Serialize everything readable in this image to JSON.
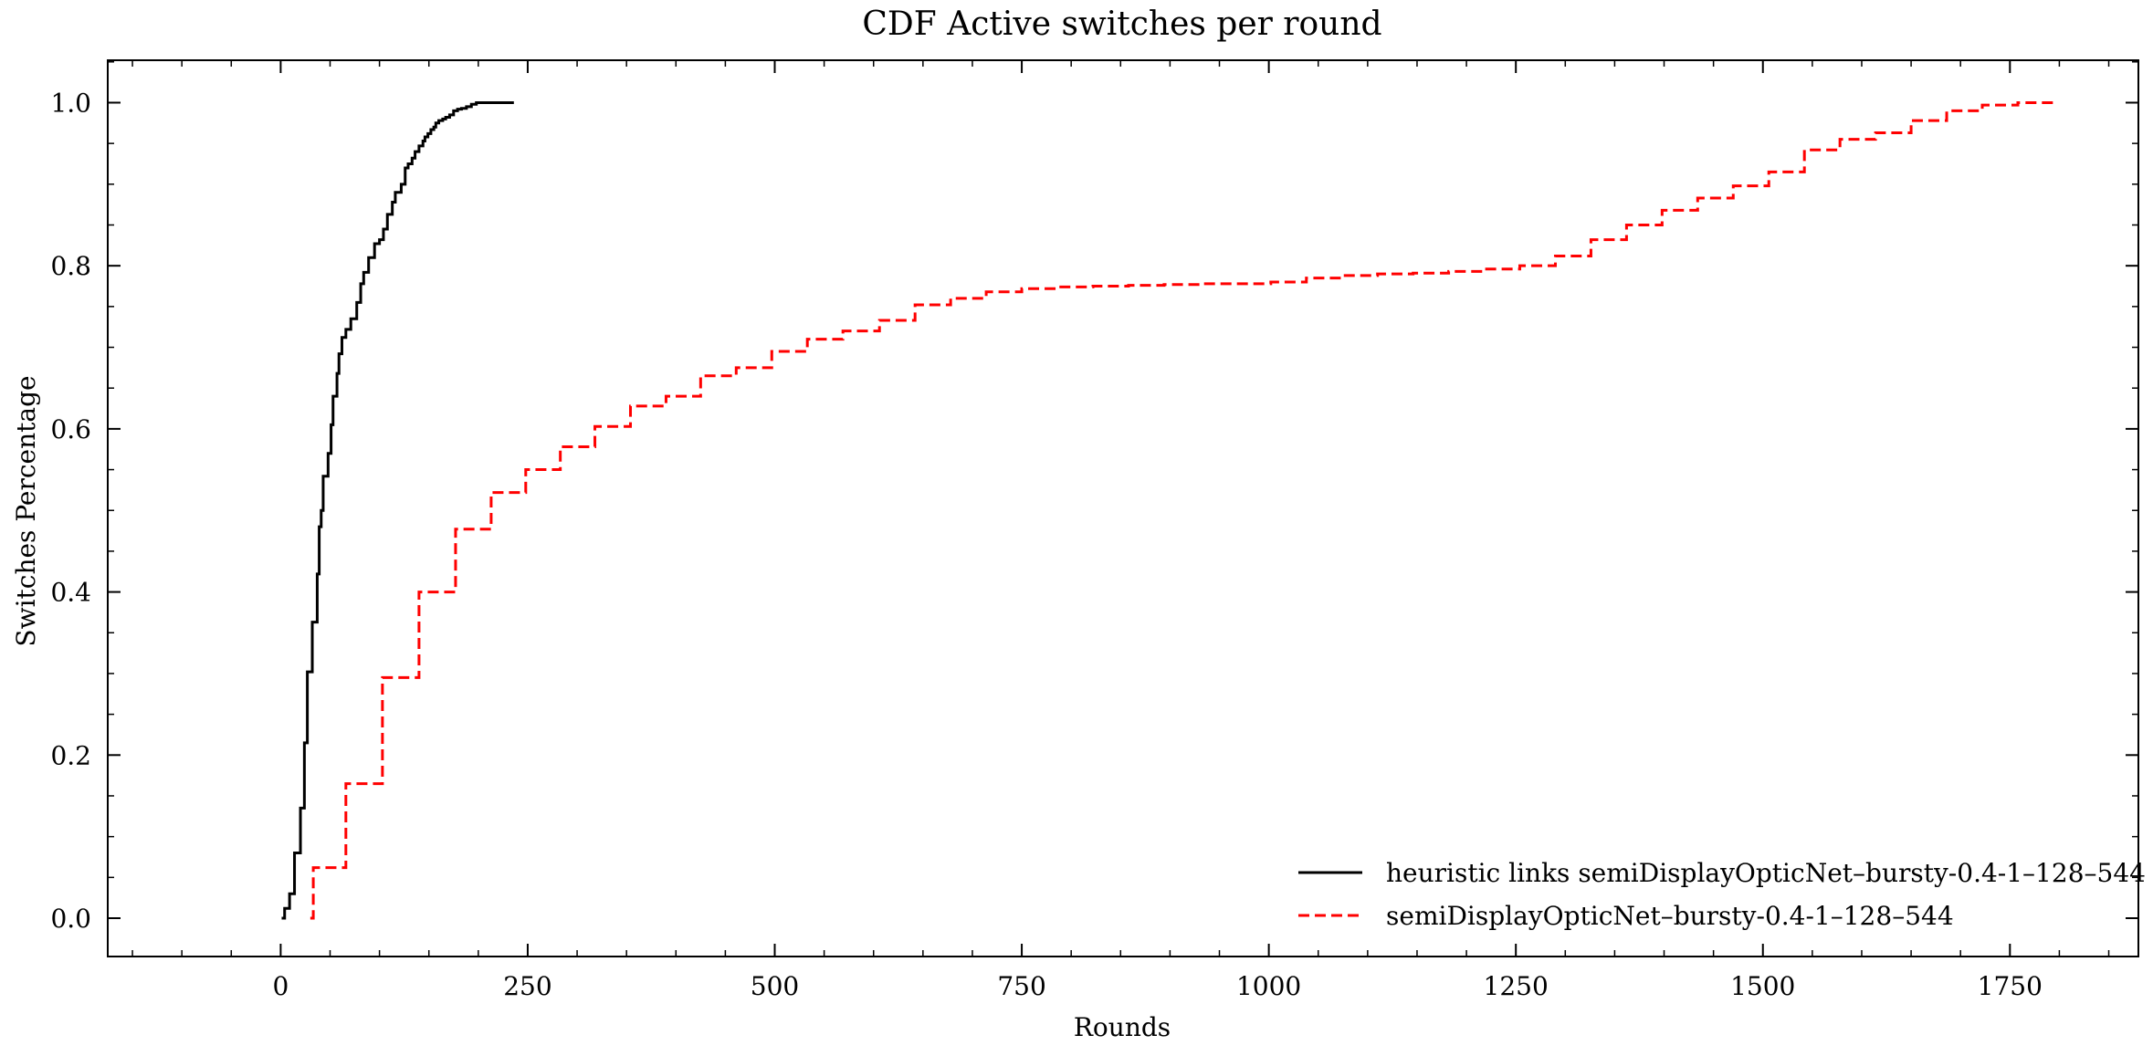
{
  "chart_data": {
    "type": "line",
    "title": "CDF Active switches per round",
    "xlabel": "Rounds",
    "ylabel": "Switches Percentage",
    "xlim": [
      -175,
      1880
    ],
    "ylim": [
      -0.047,
      1.052
    ],
    "xticks": [
      0,
      250,
      500,
      750,
      1000,
      1250,
      1500,
      1750
    ],
    "yticks": [
      0.0,
      0.2,
      0.4,
      0.6,
      0.8,
      1.0
    ],
    "xtick_labels": [
      "0",
      "250",
      "500",
      "750",
      "1000",
      "1250",
      "1500",
      "1750"
    ],
    "ytick_labels": [
      "0.0",
      "0.2",
      "0.4",
      "0.6",
      "0.8",
      "1.0"
    ],
    "grid": false,
    "legend_position": "bottom-right",
    "series": [
      {
        "name": "heuristic links semiDisplayOpticNet–bursty-0.4-1–128–544",
        "color": "#000000",
        "style": "solid",
        "drawstyle": "steps-post",
        "x": [
          1,
          4,
          9,
          14,
          20,
          24,
          27,
          32,
          37,
          39,
          41,
          43,
          48,
          51,
          53,
          57,
          59,
          62,
          66,
          71,
          77,
          81,
          84,
          89,
          95,
          100,
          104,
          108,
          113,
          116,
          122,
          126,
          129,
          133,
          136,
          140,
          144,
          146,
          149,
          152,
          155,
          157,
          160,
          164,
          167,
          171,
          175,
          179,
          183,
          188,
          193,
          198,
          202,
          206,
          211,
          216,
          221,
          227,
          236
        ],
        "y": [
          0.0,
          0.012,
          0.03,
          0.08,
          0.135,
          0.215,
          0.302,
          0.363,
          0.422,
          0.48,
          0.5,
          0.542,
          0.57,
          0.605,
          0.64,
          0.668,
          0.692,
          0.712,
          0.722,
          0.735,
          0.755,
          0.778,
          0.792,
          0.81,
          0.827,
          0.832,
          0.845,
          0.863,
          0.878,
          0.89,
          0.9,
          0.92,
          0.925,
          0.932,
          0.94,
          0.947,
          0.953,
          0.958,
          0.962,
          0.967,
          0.97,
          0.975,
          0.978,
          0.98,
          0.982,
          0.985,
          0.99,
          0.992,
          0.993,
          0.995,
          0.998,
          1.0,
          1.0,
          1.0,
          1.0,
          1.0,
          1.0,
          1.0,
          1.0
        ]
      },
      {
        "name": "semiDisplayOpticNet–bursty-0.4-1–128–544",
        "color": "#ff0000",
        "style": "dashed",
        "drawstyle": "steps-post",
        "x": [
          30,
          33,
          66,
          103,
          140,
          177,
          213,
          248,
          283,
          318,
          354,
          390,
          425,
          461,
          497,
          533,
          569,
          606,
          642,
          678,
          714,
          750,
          786,
          822,
          858,
          894,
          930,
          966,
          1002,
          1038,
          1074,
          1110,
          1146,
          1182,
          1218,
          1254,
          1290,
          1326,
          1362,
          1398,
          1434,
          1470,
          1506,
          1542,
          1578,
          1614,
          1650,
          1686,
          1722,
          1758,
          1795
        ],
        "y": [
          0.0,
          0.062,
          0.165,
          0.295,
          0.4,
          0.477,
          0.522,
          0.55,
          0.578,
          0.603,
          0.628,
          0.64,
          0.665,
          0.675,
          0.695,
          0.71,
          0.72,
          0.733,
          0.752,
          0.76,
          0.768,
          0.772,
          0.774,
          0.775,
          0.776,
          0.777,
          0.778,
          0.778,
          0.78,
          0.785,
          0.788,
          0.79,
          0.791,
          0.793,
          0.796,
          0.8,
          0.812,
          0.832,
          0.85,
          0.868,
          0.883,
          0.898,
          0.915,
          0.942,
          0.955,
          0.963,
          0.978,
          0.99,
          0.997,
          1.0,
          1.0
        ]
      }
    ]
  }
}
